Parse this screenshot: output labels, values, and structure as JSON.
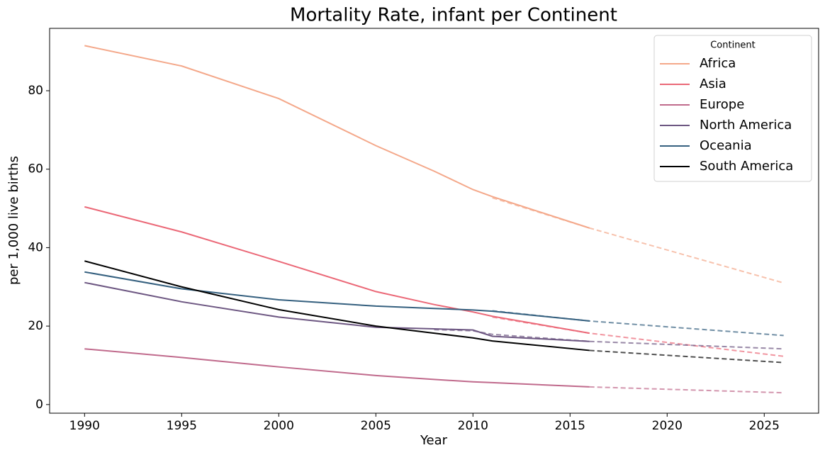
{
  "chart_data": {
    "type": "line",
    "title": "Mortality Rate, infant per Continent",
    "x_label": "Year",
    "y_label": "per 1,000 live births",
    "legend_title": "Continent",
    "legend_position": "upper right",
    "x": [
      1990,
      1995,
      2000,
      2005,
      2008,
      2010,
      2011,
      2016,
      2026
    ],
    "xlim": [
      1988.2,
      2027.8
    ],
    "xticks": [
      1990,
      1995,
      2000,
      2005,
      2010,
      2015,
      2020,
      2025
    ],
    "ylim": [
      -2.2,
      95.9
    ],
    "yticks": [
      0,
      20,
      40,
      60,
      80
    ],
    "series": [
      {
        "name": "Africa",
        "color": "#f4a88a",
        "values": [
          91.5,
          86.3,
          78,
          66,
          59.5,
          54.8,
          53,
          45,
          null
        ],
        "forecast_values": [
          null,
          null,
          null,
          null,
          null,
          null,
          52.7,
          45,
          31
        ]
      },
      {
        "name": "Asia",
        "color": "#eb6877",
        "values": [
          50.4,
          44,
          36.5,
          28.8,
          25.5,
          23.6,
          22.5,
          18.2,
          null
        ],
        "forecast_values": [
          null,
          null,
          null,
          null,
          null,
          null,
          22.3,
          18.2,
          12.3
        ]
      },
      {
        "name": "Europe",
        "color": "#c06a8c",
        "values": [
          14.2,
          12,
          9.6,
          7.4,
          6.4,
          5.8,
          5.6,
          4.5,
          null
        ],
        "forecast_values": [
          null,
          null,
          null,
          null,
          null,
          null,
          null,
          4.5,
          3.0
        ]
      },
      {
        "name": "North America",
        "color": "#6d5782",
        "values": [
          31.1,
          26.2,
          22.3,
          19.7,
          19.3,
          19.0,
          17.4,
          16.1,
          null
        ],
        "forecast_values": [
          null,
          null,
          null,
          null,
          19.1,
          18.8,
          17.9,
          16.1,
          14.2
        ]
      },
      {
        "name": "Oceania",
        "color": "#35607f",
        "values": [
          33.8,
          29.5,
          26.7,
          25.1,
          24.5,
          24.1,
          23.8,
          21.3,
          null
        ],
        "forecast_values": [
          null,
          null,
          null,
          null,
          null,
          null,
          23.9,
          21.3,
          17.6
        ]
      },
      {
        "name": "South America",
        "color": "#000000",
        "values": [
          36.6,
          30,
          24.2,
          20,
          18.2,
          17,
          16.2,
          13.8,
          null
        ],
        "forecast_values": [
          null,
          null,
          null,
          null,
          null,
          null,
          null,
          13.8,
          10.7
        ]
      }
    ]
  }
}
